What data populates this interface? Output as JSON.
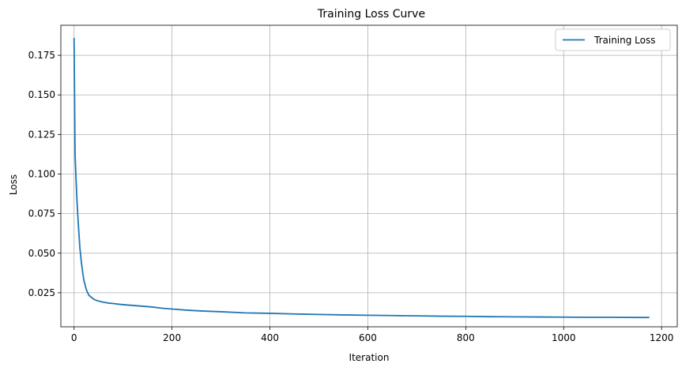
{
  "chart_data": {
    "type": "line",
    "title": "Training Loss Curve",
    "xlabel": "Iteration",
    "ylabel": "Loss",
    "xlim": [
      -27,
      1232
    ],
    "ylim": [
      0.0035,
      0.194
    ],
    "xticks": [
      0,
      200,
      400,
      600,
      800,
      1000,
      1200
    ],
    "yticks": [
      0.025,
      0.05,
      0.075,
      0.1,
      0.125,
      0.15,
      0.175
    ],
    "ytick_labels": [
      "0.025",
      "0.050",
      "0.075",
      "0.100",
      "0.125",
      "0.150",
      "0.175"
    ],
    "grid": true,
    "legend_position": "upper right",
    "series": [
      {
        "name": "Training Loss",
        "color": "#1f77b4",
        "x": [
          0,
          1,
          2,
          3,
          4,
          5,
          6,
          8,
          10,
          12,
          15,
          18,
          20,
          25,
          30,
          35,
          40,
          45,
          50,
          60,
          70,
          80,
          90,
          100,
          120,
          140,
          160,
          180,
          200,
          230,
          260,
          300,
          350,
          400,
          450,
          500,
          550,
          600,
          650,
          700,
          750,
          800,
          850,
          900,
          950,
          1000,
          1050,
          1100,
          1150,
          1175
        ],
        "y": [
          0.186,
          0.15,
          0.113,
          0.105,
          0.097,
          0.09,
          0.083,
          0.072,
          0.062,
          0.053,
          0.044,
          0.037,
          0.033,
          0.027,
          0.0235,
          0.0222,
          0.021,
          0.0202,
          0.0198,
          0.019,
          0.0185,
          0.0182,
          0.0178,
          0.0175,
          0.017,
          0.0165,
          0.016,
          0.0152,
          0.0147,
          0.014,
          0.0135,
          0.013,
          0.0123,
          0.012,
          0.0116,
          0.0113,
          0.011,
          0.0108,
          0.0106,
          0.0104,
          0.0102,
          0.0101,
          0.0099,
          0.0098,
          0.0097,
          0.0096,
          0.0095,
          0.0095,
          0.0094,
          0.0094
        ]
      }
    ]
  }
}
